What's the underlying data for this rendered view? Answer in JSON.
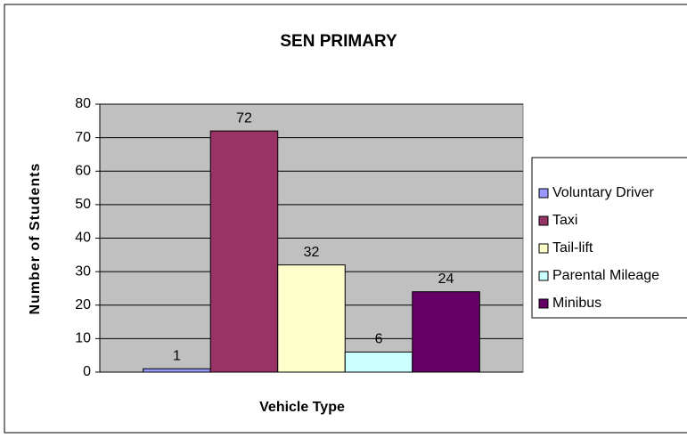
{
  "chart_data": {
    "type": "bar",
    "title": "SEN PRIMARY",
    "x_label": "Vehicle Type",
    "y_label": "Number of Students",
    "categories": [
      null
    ],
    "series": [
      {
        "name": "Voluntary Driver",
        "color": "#9999ff",
        "values": [
          1
        ]
      },
      {
        "name": "Taxi",
        "color": "#993366",
        "values": [
          72
        ]
      },
      {
        "name": "Tail-lift",
        "color": "#ffffcc",
        "values": [
          32
        ]
      },
      {
        "name": "Parental Mileage",
        "color": "#ccffff",
        "values": [
          6
        ]
      },
      {
        "name": "Minibus",
        "color": "#660066",
        "values": [
          24
        ]
      }
    ],
    "ylim": [
      0,
      80
    ],
    "yticks": [
      0,
      10,
      20,
      30,
      40,
      50,
      60,
      70,
      80
    ],
    "grid": true,
    "legend": "right",
    "plot_background": "#c0c0c0"
  }
}
